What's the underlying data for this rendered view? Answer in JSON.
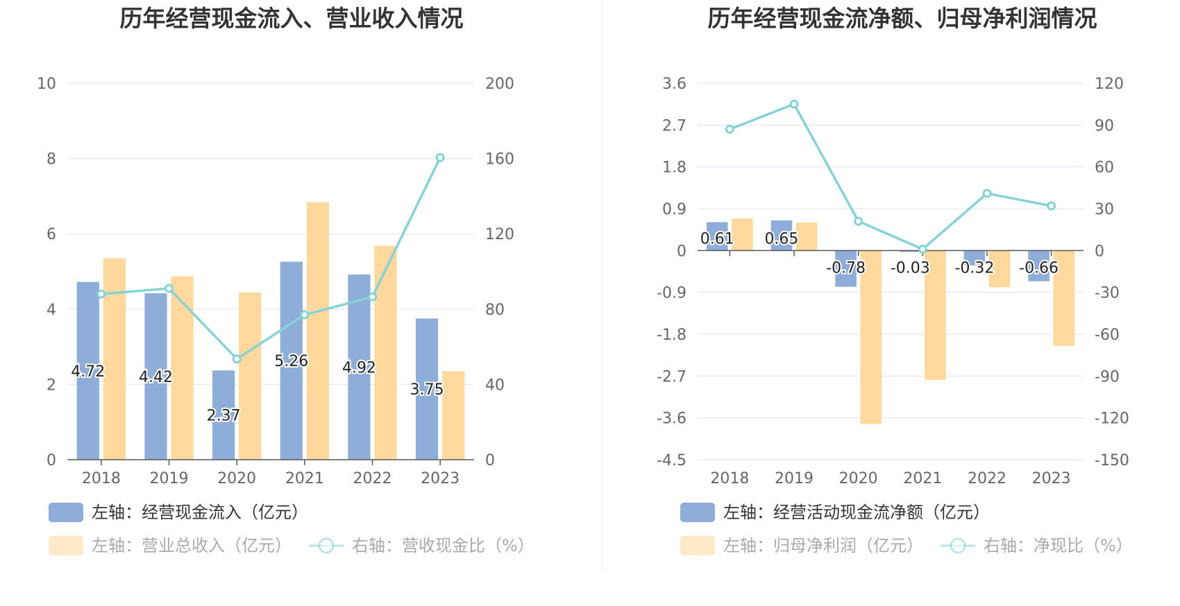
{
  "colors": {
    "bar_primary": "#8eadd9",
    "bar_secondary": "#fed89c",
    "line": "#86d2d6",
    "grid": "#dde3ee",
    "axis": "#555555",
    "divider": "#eeeeee"
  },
  "chart_data": [
    {
      "type": "bar",
      "title": "历年经营现金流入、营业收入情况",
      "categories": [
        "2018",
        "2019",
        "2020",
        "2021",
        "2022",
        "2023"
      ],
      "y_left": {
        "min": 0,
        "max": 10,
        "ticks": [
          "0",
          "2",
          "4",
          "6",
          "8",
          "10"
        ]
      },
      "y_right": {
        "min": 0,
        "max": 200,
        "ticks": [
          "0",
          "40",
          "80",
          "120",
          "160",
          "200"
        ]
      },
      "series": [
        {
          "name": "左轴：经营现金流入（亿元）",
          "axis": "left",
          "kind": "bar",
          "values": [
            4.72,
            4.42,
            2.37,
            5.26,
            4.92,
            3.75
          ],
          "labels": [
            "4.72",
            "4.42",
            "2.37",
            "5.26",
            "4.92",
            "3.75"
          ]
        },
        {
          "name": "左轴：营业总收入（亿元）",
          "axis": "left",
          "kind": "bar",
          "values": [
            5.35,
            4.87,
            4.44,
            6.84,
            5.68,
            2.35
          ]
        },
        {
          "name": "右轴：营收现金比（%）",
          "axis": "right",
          "kind": "line",
          "values": [
            88,
            91,
            53.5,
            77,
            86.5,
            160.5
          ]
        }
      ],
      "legend_placement": "bottom",
      "grid": true
    },
    {
      "type": "bar",
      "title": "历年经营现金流净额、归母净利润情况",
      "categories": [
        "2018",
        "2019",
        "2020",
        "2021",
        "2022",
        "2023"
      ],
      "y_left": {
        "min": -4.5,
        "max": 3.6,
        "ticks": [
          "-4.5",
          "-3.6",
          "-2.7",
          "-1.8",
          "-0.9",
          "0",
          "0.9",
          "1.8",
          "2.7",
          "3.6"
        ]
      },
      "y_right": {
        "min": -150,
        "max": 120,
        "ticks": [
          "-150",
          "-120",
          "-90",
          "-60",
          "-30",
          "0",
          "30",
          "60",
          "90",
          "120"
        ]
      },
      "series": [
        {
          "name": "左轴：经营活动现金流净额（亿元）",
          "axis": "left",
          "kind": "bar",
          "values": [
            0.61,
            0.65,
            -0.78,
            -0.03,
            -0.32,
            -0.66
          ],
          "labels": [
            "0.61",
            "0.65",
            "-0.78",
            "-0.03",
            "-0.32",
            "-0.66"
          ]
        },
        {
          "name": "左轴：归母净利润（亿元）",
          "axis": "left",
          "kind": "bar",
          "values": [
            0.69,
            0.6,
            -3.73,
            -2.78,
            -0.79,
            -2.05
          ]
        },
        {
          "name": "右轴：净现比（%）",
          "axis": "right",
          "kind": "line",
          "values": [
            87,
            105,
            21,
            1,
            41,
            32
          ]
        }
      ],
      "legend_placement": "bottom",
      "grid": true
    }
  ]
}
